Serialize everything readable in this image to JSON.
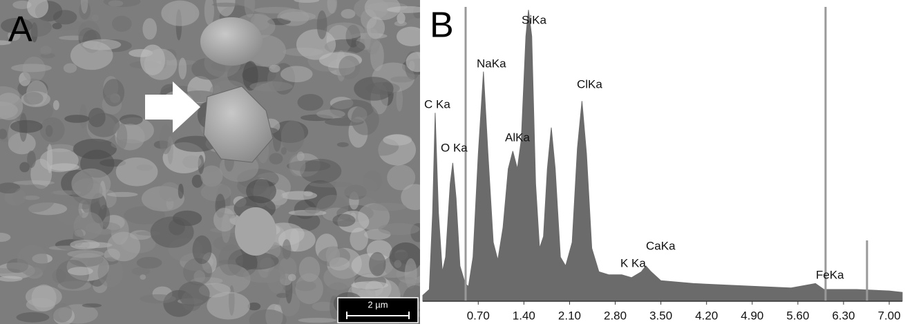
{
  "image_panel": {
    "label": "A",
    "scale_bar": "2 µm"
  },
  "chart_data": {
    "type": "area",
    "panel_label": "B",
    "color": "#6b6b6b",
    "x": [
      -0.15,
      -0.05,
      0.0,
      0.04,
      0.09,
      0.15,
      0.2,
      0.27,
      0.31,
      0.36,
      0.42,
      0.5,
      0.55,
      0.62,
      0.7,
      0.78,
      0.85,
      0.93,
      1.0,
      1.08,
      1.16,
      1.23,
      1.3,
      1.36,
      1.43,
      1.47,
      1.52,
      1.58,
      1.64,
      1.7,
      1.76,
      1.82,
      1.88,
      1.96,
      2.04,
      2.14,
      2.22,
      2.29,
      2.36,
      2.44,
      2.55,
      2.7,
      2.9,
      3.05,
      3.2,
      3.27,
      3.35,
      3.5,
      4.0,
      4.5,
      5.0,
      5.5,
      5.87,
      6.0,
      6.5,
      7.0,
      7.2
    ],
    "values": [
      2,
      4,
      30,
      64,
      30,
      10,
      15,
      40,
      47,
      35,
      12,
      6,
      5,
      15,
      50,
      78,
      50,
      20,
      14,
      25,
      45,
      51,
      45,
      55,
      90,
      99,
      90,
      40,
      18,
      22,
      45,
      59,
      45,
      15,
      12,
      20,
      52,
      68,
      50,
      18,
      10,
      9,
      9,
      8,
      10,
      12,
      10,
      7,
      6,
      5.5,
      5,
      4.5,
      6,
      4,
      4,
      3.5,
      3
    ],
    "xlim": [
      -0.15,
      7.2
    ],
    "ylim": [
      0,
      100
    ],
    "xticks": [
      {
        "value": 0.7,
        "label": "0.70"
      },
      {
        "value": 1.4,
        "label": "1.40"
      },
      {
        "value": 2.1,
        "label": "2.10"
      },
      {
        "value": 2.8,
        "label": "2.80"
      },
      {
        "value": 3.5,
        "label": "3.50"
      },
      {
        "value": 4.2,
        "label": "4.20"
      },
      {
        "value": 4.9,
        "label": "4.90"
      },
      {
        "value": 5.6,
        "label": "5.60"
      },
      {
        "value": 6.3,
        "label": "6.30"
      },
      {
        "value": 7.0,
        "label": "7.00"
      }
    ],
    "annotations": [
      "C Ka",
      "O Ka",
      "NaKa",
      "AlKa",
      "SiKa",
      "ClKa",
      "K Ka",
      "CaKa",
      "FeKa"
    ]
  }
}
